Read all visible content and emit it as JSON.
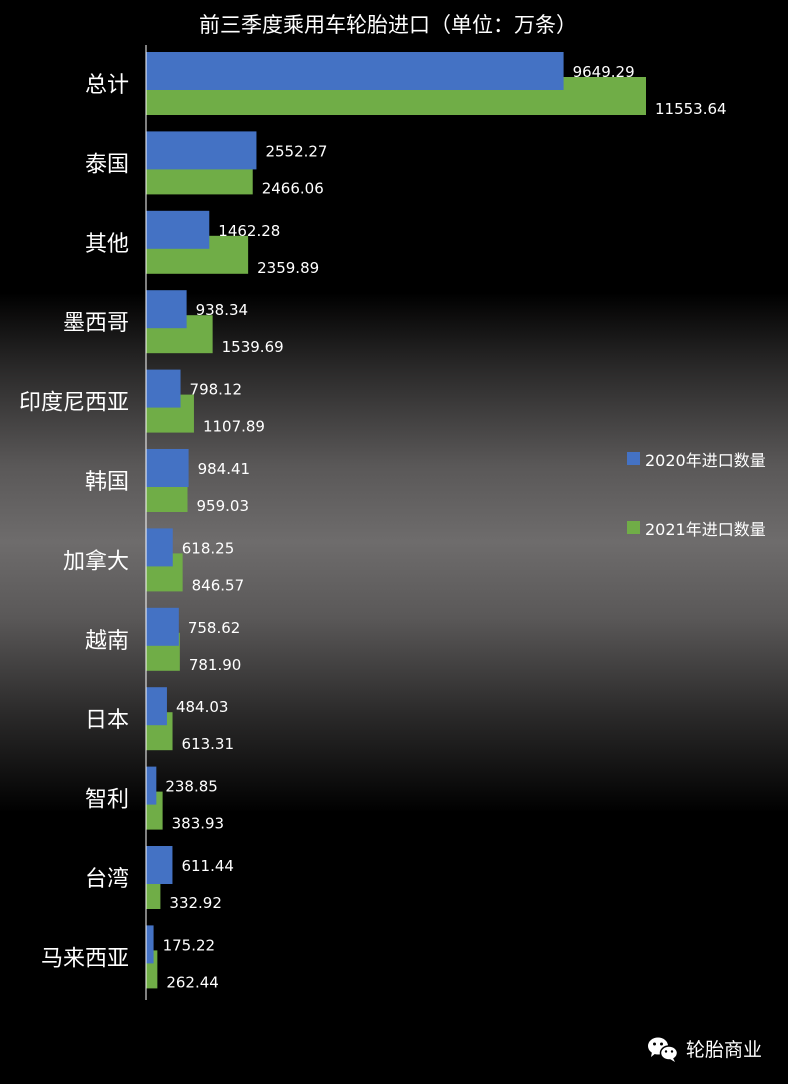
{
  "chart_data": {
    "type": "bar",
    "orientation": "horizontal",
    "title": "前三季度乘用车轮胎进口（单位：万条）",
    "categories": [
      "总计",
      "泰国",
      "其他",
      "墨西哥",
      "印度尼西亚",
      "韩国",
      "加拿大",
      "越南",
      "日本",
      "智利",
      "台湾",
      "马来西亚"
    ],
    "series": [
      {
        "name": "2020年进口数量",
        "color": "#4472c4",
        "values": [
          9649.29,
          2552.27,
          1462.28,
          938.34,
          798.12,
          984.41,
          618.25,
          758.62,
          484.03,
          238.85,
          611.44,
          175.22
        ],
        "labels": [
          "9649.29",
          "2552.27",
          "1462.28",
          "938.34",
          "798.12",
          "984.41",
          "618.25",
          "758.62",
          "484.03",
          "238.85",
          "611.44",
          "175.22"
        ]
      },
      {
        "name": "2021年进口数量",
        "color": "#70ad47",
        "values": [
          11553.64,
          2466.06,
          2359.89,
          1539.69,
          1107.89,
          959.03,
          846.57,
          781.9,
          613.31,
          383.93,
          332.92,
          262.44
        ],
        "labels": [
          "11553.64",
          "2466.06",
          "2359.89",
          "1539.69",
          "1107.89",
          "959.03",
          "846.57",
          "781.90",
          "613.31",
          "383.93",
          "332.92",
          "262.44"
        ]
      }
    ],
    "xlim": [
      0,
      15000
    ],
    "data_labels": true,
    "grid": false,
    "legend_position": "right"
  },
  "watermark": {
    "icon": "wechat-icon",
    "text": "轮胎商业"
  }
}
